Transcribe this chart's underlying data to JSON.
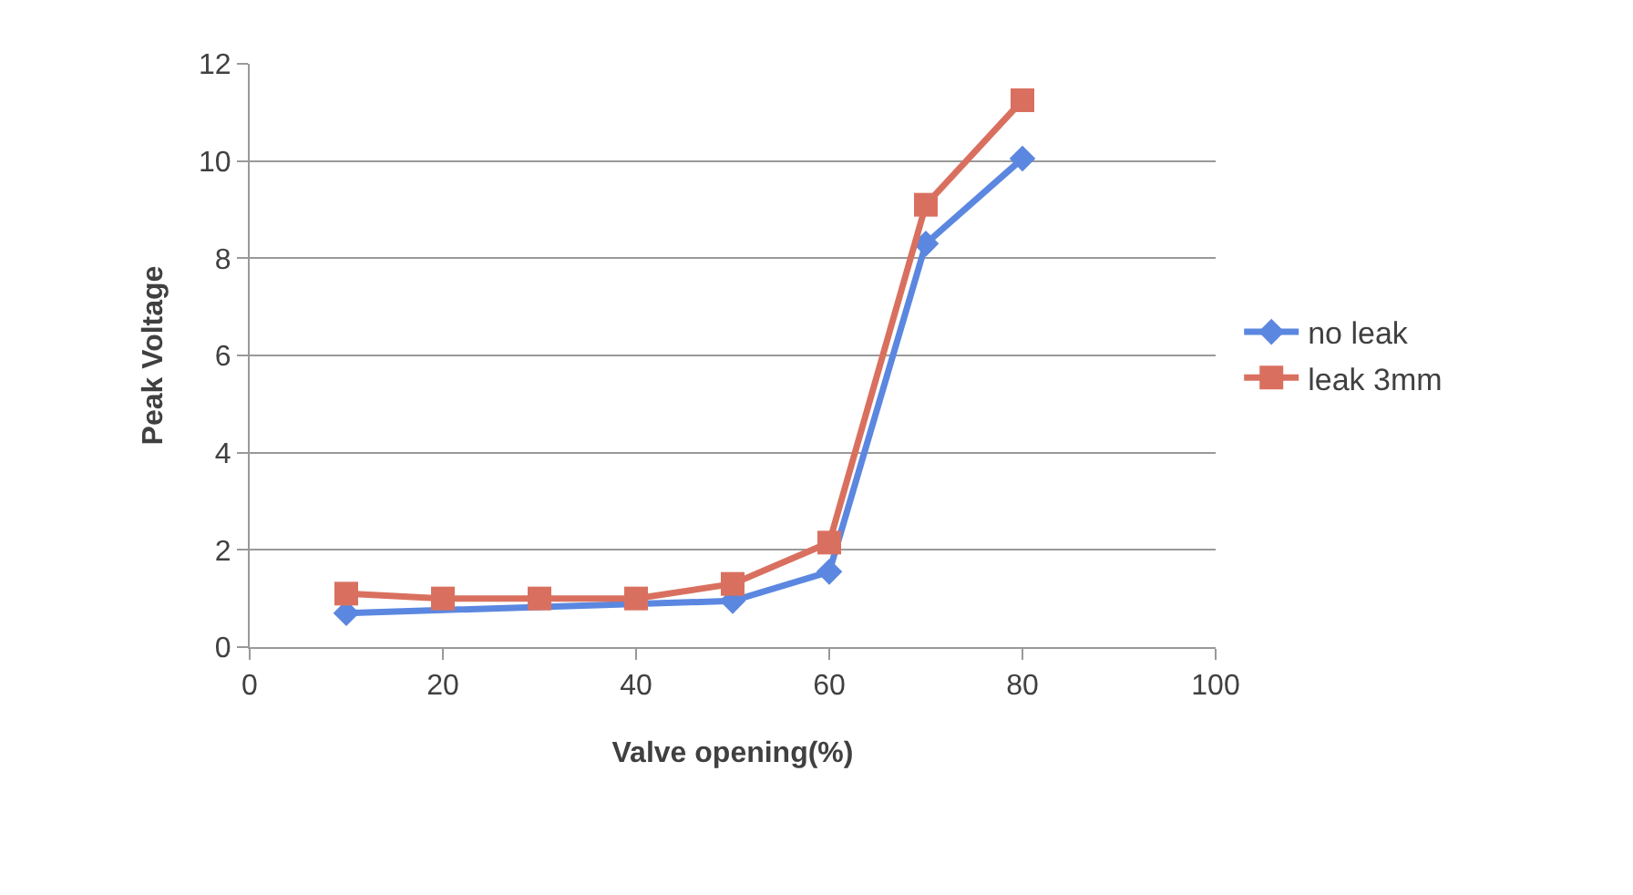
{
  "chart_data": {
    "type": "line",
    "xlabel": "Valve opening(%)",
    "ylabel": "Peak Voltage",
    "x": [
      10,
      20,
      30,
      40,
      50,
      60,
      70,
      80
    ],
    "series": [
      {
        "name": "no leak",
        "color": "#5b87e0",
        "marker": "diamond",
        "values": [
          0.7,
          null,
          null,
          null,
          0.95,
          1.55,
          8.3,
          10.05
        ]
      },
      {
        "name": "leak 3mm",
        "color": "#d9705f",
        "marker": "square",
        "values": [
          1.1,
          1,
          1,
          1,
          1.3,
          2.15,
          9.1,
          11.25
        ]
      }
    ],
    "xlim": [
      0,
      100
    ],
    "xticks": [
      0,
      20,
      40,
      60,
      80,
      100
    ],
    "ylim": [
      0,
      12
    ],
    "yticks": [
      0,
      2,
      4,
      6,
      8,
      10,
      12
    ],
    "grid": "y",
    "legend": "right",
    "line_style": "solid"
  }
}
